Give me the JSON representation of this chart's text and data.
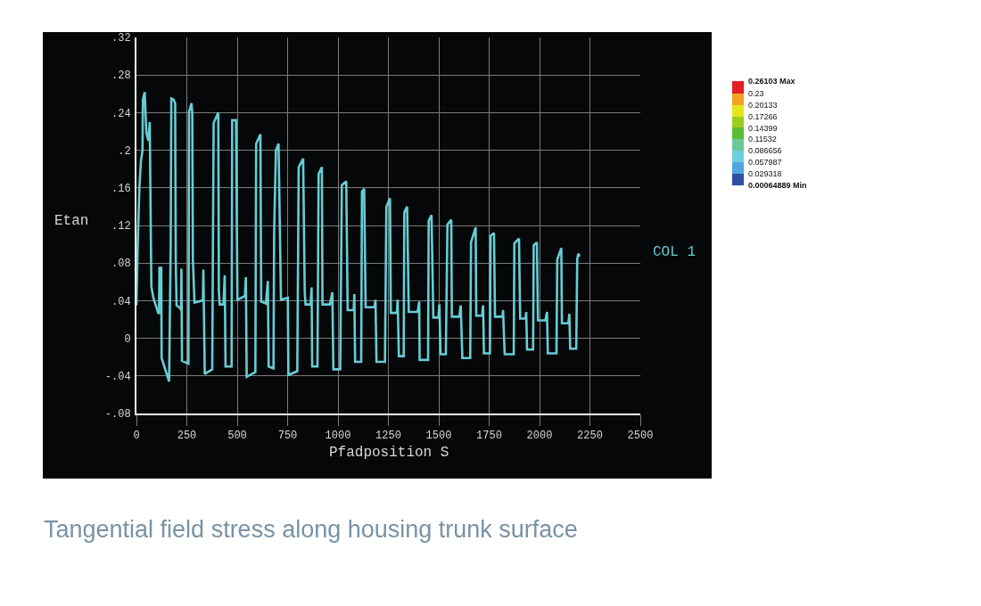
{
  "chart_data": [
    {
      "type": "line",
      "xlabel": "Pfadposition S",
      "ylabel": "Etan",
      "xlim": [
        0,
        2500
      ],
      "ylim": [
        -0.08,
        0.32
      ],
      "xticks": [
        0,
        250,
        500,
        750,
        1000,
        1250,
        1500,
        1750,
        2000,
        2250,
        2500
      ],
      "yticks": [
        {
          "value": 0.32,
          "label": ".32"
        },
        {
          "value": 0.28,
          "label": ".28"
        },
        {
          "value": 0.24,
          "label": ".24"
        },
        {
          "value": 0.2,
          "label": ".2"
        },
        {
          "value": 0.16,
          "label": ".16"
        },
        {
          "value": 0.12,
          "label": ".12"
        },
        {
          "value": 0.08,
          "label": ".08"
        },
        {
          "value": 0.04,
          "label": ".04"
        },
        {
          "value": 0,
          "label": "0"
        },
        {
          "value": -0.04,
          "label": "-.04"
        },
        {
          "value": -0.08,
          "label": "-.08"
        }
      ],
      "grid": true,
      "legend": "right",
      "annotations": [
        "Tangential field stress along housing trunk surface"
      ],
      "series": [
        {
          "name": "COL 1",
          "color": "#66cdd5",
          "x": [
            0,
            7,
            15,
            22,
            30,
            32,
            41,
            49,
            59,
            66,
            69,
            74,
            84,
            108,
            112,
            114,
            123,
            125,
            162,
            170,
            173,
            184,
            192,
            195,
            199,
            217,
            221,
            223,
            226,
            258,
            261,
            273,
            277,
            280,
            288,
            324,
            330,
            332,
            339,
            376,
            383,
            406,
            409,
            413,
            432,
            438,
            442,
            472,
            475,
            494,
            501,
            538,
            543,
            547,
            590,
            594,
            615,
            619,
            642,
            652,
            656,
            680,
            683,
            692,
            705,
            712,
            717,
            751,
            754,
            798,
            805,
            827,
            830,
            835,
            839,
            864,
            869,
            872,
            898,
            904,
            920,
            923,
            960,
            972,
            977,
            1011,
            1019,
            1041,
            1048,
            1078,
            1081,
            1085,
            1115,
            1119,
            1130,
            1137,
            1181,
            1186,
            1191,
            1233,
            1240,
            1258,
            1262,
            1292,
            1296,
            1302,
            1326,
            1329,
            1343,
            1351,
            1395,
            1403,
            1405,
            1447,
            1450,
            1464,
            1473,
            1498,
            1503,
            1509,
            1535,
            1543,
            1562,
            1565,
            1602,
            1609,
            1617,
            1656,
            1660,
            1683,
            1686,
            1715,
            1720,
            1724,
            1754,
            1757,
            1774,
            1779,
            1816,
            1819,
            1827,
            1872,
            1875,
            1898,
            1904,
            1930,
            1934,
            1938,
            1968,
            1971,
            1987,
            1992,
            2029,
            2037,
            2041,
            2084,
            2088,
            2108,
            2111,
            2143,
            2148,
            2152,
            2182,
            2187,
            2192,
            2199
          ],
          "values": [
            0.035,
            0.106,
            0.162,
            0.188,
            0.2,
            0.254,
            0.262,
            0.219,
            0.21,
            0.23,
            0.162,
            0.055,
            0.043,
            0.027,
            0.027,
            0.075,
            0.075,
            -0.021,
            -0.046,
            0.1,
            0.255,
            0.254,
            0.25,
            0.084,
            0.035,
            0.032,
            0.03,
            0.074,
            -0.024,
            -0.027,
            0.241,
            0.25,
            0.24,
            0.084,
            0.038,
            0.04,
            0.04,
            0.073,
            -0.038,
            -0.033,
            0.229,
            0.24,
            0.05,
            0.036,
            0.036,
            0.067,
            -0.03,
            -0.03,
            0.232,
            0.232,
            0.041,
            0.045,
            0.065,
            -0.041,
            -0.036,
            0.207,
            0.217,
            0.039,
            0.037,
            0.061,
            -0.03,
            -0.032,
            0.112,
            0.2,
            0.207,
            0.112,
            0.041,
            0.043,
            -0.039,
            -0.035,
            0.182,
            0.191,
            0.137,
            0.049,
            0.036,
            0.036,
            0.054,
            -0.03,
            -0.03,
            0.175,
            0.182,
            0.036,
            0.036,
            0.049,
            -0.033,
            -0.033,
            0.163,
            0.167,
            0.03,
            0.03,
            0.047,
            -0.025,
            -0.025,
            0.156,
            0.159,
            0.033,
            0.033,
            0.041,
            -0.025,
            -0.025,
            0.14,
            0.149,
            0.027,
            0.027,
            0.041,
            -0.019,
            -0.019,
            0.134,
            0.14,
            0.028,
            0.028,
            0.039,
            -0.023,
            -0.023,
            0.125,
            0.131,
            0.022,
            0.022,
            0.036,
            -0.017,
            -0.017,
            0.121,
            0.126,
            0.023,
            0.023,
            0.035,
            -0.021,
            -0.021,
            0.102,
            0.118,
            0.024,
            0.024,
            0.035,
            -0.016,
            -0.016,
            0.109,
            0.112,
            0.023,
            0.023,
            0.03,
            -0.017,
            -0.017,
            0.101,
            0.106,
            0.021,
            0.021,
            0.028,
            -0.012,
            -0.012,
            0.099,
            0.102,
            0.019,
            0.019,
            0.028,
            -0.016,
            -0.016,
            0.084,
            0.096,
            0.016,
            0.016,
            0.026,
            -0.011,
            -0.011,
            0.084,
            0.09,
            0.087
          ]
        }
      ]
    },
    {
      "type": "bar",
      "stacked": true,
      "categories": [
        null
      ],
      "tick_labels": "y",
      "ylim": [
        0,
        0.26103
      ],
      "yticks": [
        {
          "value": 0.26103,
          "label": "0.26103 Max"
        },
        0.23,
        0.20133,
        0.17266,
        0.14399,
        0.11532,
        0.086656,
        0.057987,
        0.029318,
        {
          "value": 0.00064889,
          "label": "0.00064889 Min"
        }
      ],
      "series": [
        {
          "color": "#2f4fa3",
          "values": [
            0.0293
          ]
        },
        {
          "color": "#53a6e0",
          "values": [
            0.0287
          ]
        },
        {
          "color": "#6dcfdc",
          "values": [
            0.0287
          ]
        },
        {
          "color": "#6bc99a",
          "values": [
            0.0287
          ]
        },
        {
          "color": "#5bbd33",
          "values": [
            0.0287
          ]
        },
        {
          "color": "#9dcc1e",
          "values": [
            0.0287
          ]
        },
        {
          "color": "#e5e51b",
          "values": [
            0.0287
          ]
        },
        {
          "color": "#f4a21d",
          "values": [
            0.0287
          ]
        },
        {
          "color": "#e31e24",
          "values": [
            0.031
          ]
        }
      ]
    }
  ]
}
